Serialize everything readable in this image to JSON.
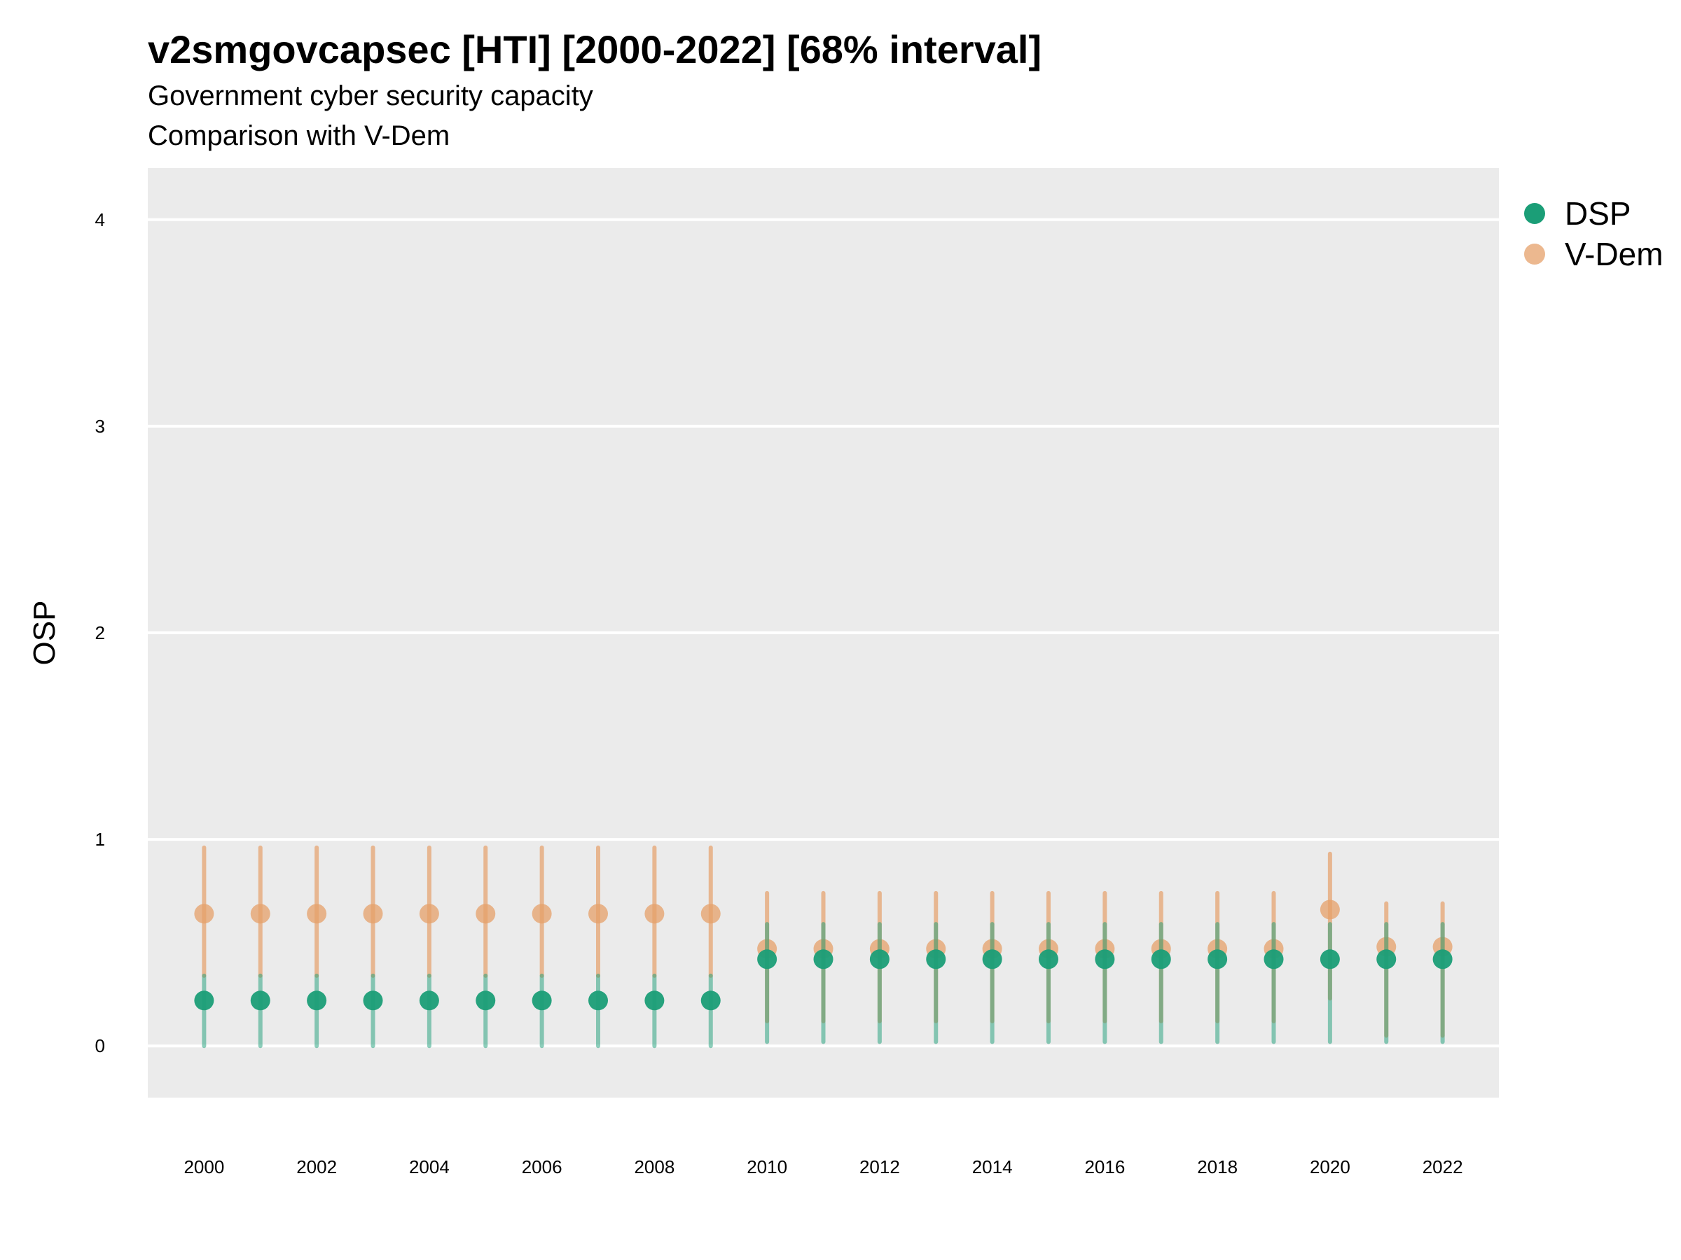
{
  "title": "v2smgovcapsec [HTI] [2000-2022] [68% interval]",
  "subtitle1": "Government cyber security capacity",
  "subtitle2": "Comparison with V-Dem",
  "colors": {
    "dsp": "#1b9e77",
    "vdem": "#e6a06a",
    "panel": "#ebebeb",
    "grid": "#ffffff"
  },
  "chart_data": {
    "type": "scatter",
    "x_tick_labels": [
      "2000",
      "2002",
      "2004",
      "2006",
      "2008",
      "2010",
      "2012",
      "2014",
      "2016",
      "2018",
      "2020",
      "2022"
    ],
    "y_tick_labels": [
      "0",
      "1",
      "2",
      "3",
      "4"
    ],
    "ylabel": "OSP",
    "xlim": [
      1999.0,
      2023.0
    ],
    "ylim": [
      -0.25,
      4.25
    ],
    "grid": true,
    "legend_position": "right-top",
    "series": [
      {
        "name": "DSP",
        "x": [
          2000,
          2001,
          2002,
          2003,
          2004,
          2005,
          2006,
          2007,
          2008,
          2009,
          2010,
          2011,
          2012,
          2013,
          2014,
          2015,
          2016,
          2017,
          2018,
          2019,
          2020,
          2021,
          2022
        ],
        "y": [
          0.22,
          0.22,
          0.22,
          0.22,
          0.22,
          0.22,
          0.22,
          0.22,
          0.22,
          0.22,
          0.42,
          0.42,
          0.42,
          0.42,
          0.42,
          0.42,
          0.42,
          0.42,
          0.42,
          0.42,
          0.42,
          0.42,
          0.42
        ],
        "lower": [
          0.0,
          0.0,
          0.0,
          0.0,
          0.0,
          0.0,
          0.0,
          0.0,
          0.0,
          0.0,
          0.02,
          0.02,
          0.02,
          0.02,
          0.02,
          0.02,
          0.02,
          0.02,
          0.02,
          0.02,
          0.02,
          0.02,
          0.02
        ],
        "upper": [
          0.34,
          0.34,
          0.34,
          0.34,
          0.34,
          0.34,
          0.34,
          0.34,
          0.34,
          0.34,
          0.59,
          0.59,
          0.59,
          0.59,
          0.59,
          0.59,
          0.59,
          0.59,
          0.59,
          0.59,
          0.59,
          0.59,
          0.59
        ]
      },
      {
        "name": "V-Dem",
        "x": [
          2000,
          2001,
          2002,
          2003,
          2004,
          2005,
          2006,
          2007,
          2008,
          2009,
          2010,
          2011,
          2012,
          2013,
          2014,
          2015,
          2016,
          2017,
          2018,
          2019,
          2020,
          2021,
          2022
        ],
        "y": [
          0.64,
          0.64,
          0.64,
          0.64,
          0.64,
          0.64,
          0.64,
          0.64,
          0.64,
          0.64,
          0.47,
          0.47,
          0.47,
          0.47,
          0.47,
          0.47,
          0.47,
          0.47,
          0.47,
          0.47,
          0.66,
          0.48,
          0.48
        ],
        "lower": [
          0.34,
          0.34,
          0.34,
          0.34,
          0.34,
          0.34,
          0.34,
          0.34,
          0.34,
          0.34,
          0.12,
          0.12,
          0.12,
          0.12,
          0.12,
          0.12,
          0.12,
          0.12,
          0.12,
          0.12,
          0.23,
          0.05,
          0.05
        ],
        "upper": [
          0.96,
          0.96,
          0.96,
          0.96,
          0.96,
          0.96,
          0.96,
          0.96,
          0.96,
          0.96,
          0.74,
          0.74,
          0.74,
          0.74,
          0.74,
          0.74,
          0.74,
          0.74,
          0.74,
          0.74,
          0.93,
          0.69,
          0.69
        ]
      }
    ]
  }
}
